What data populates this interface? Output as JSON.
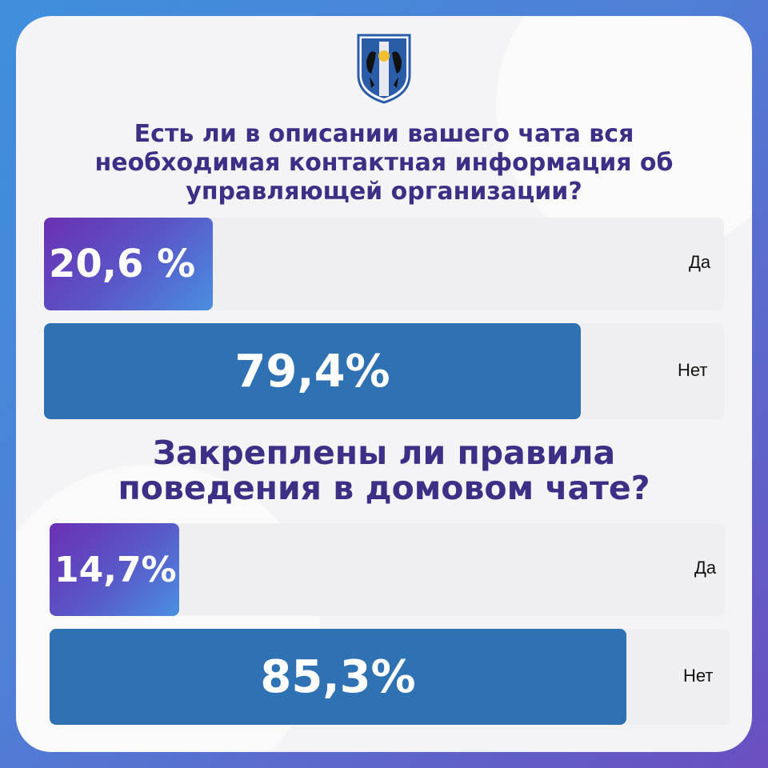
{
  "colors": {
    "title": "#3c2f86",
    "bar_no": "#2f72b3",
    "bar_yes_gradient": [
      "#6b2fb3",
      "#4a8fe0"
    ],
    "track": "#efeff1",
    "frame_gradient": [
      "#3f8fdc",
      "#6a4fc0"
    ]
  },
  "emblem": {
    "icon": "coat-of-arms-icon"
  },
  "chart_data": [
    {
      "type": "bar",
      "orientation": "horizontal",
      "title": "Есть ли в описании вашего чата вся необходимая контактная информация об управляющей организации?",
      "categories": [
        "Да",
        "Нет"
      ],
      "values": [
        20.6,
        79.4
      ],
      "value_labels": [
        "20,6 %",
        "79,4%"
      ],
      "unit": "%"
    },
    {
      "type": "bar",
      "orientation": "horizontal",
      "title": "Закреплены ли правила поведения в домовом чате?",
      "categories": [
        "Да",
        "Нет"
      ],
      "values": [
        14.7,
        85.3
      ],
      "value_labels": [
        "14,7%",
        "85,3%"
      ],
      "unit": "%"
    }
  ]
}
